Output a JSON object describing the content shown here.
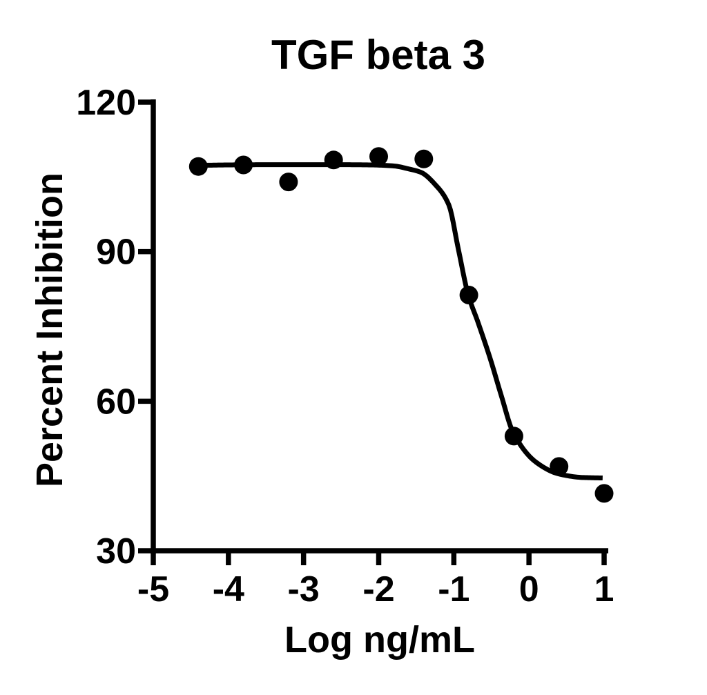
{
  "figure": {
    "background_color": "#ffffff",
    "foreground_color": "#000000"
  },
  "chart_data": {
    "type": "scatter",
    "subtype": "dose-response-inhibition-curve",
    "title": "TGF beta 3",
    "xlabel": "Log ng/mL",
    "ylabel": "Percent Inhibition",
    "x_range": [
      -5,
      1
    ],
    "y_range": [
      30,
      120
    ],
    "x_ticks": [
      -5,
      -4,
      -3,
      -2,
      -1,
      0,
      1
    ],
    "y_ticks": [
      30,
      60,
      90,
      120
    ],
    "grid": false,
    "legend": "none",
    "marker": "filled-circle",
    "marker_color": "#000000",
    "curve_color": "#000000",
    "series": [
      {
        "name": "TGF beta 3",
        "x": [
          -4.4,
          -3.8,
          -3.2,
          -2.6,
          -2.0,
          -1.4,
          -0.8,
          -0.2,
          0.4,
          1.0
        ],
        "y": [
          107.1,
          107.4,
          104.0,
          108.4,
          109.1,
          108.6,
          81.3,
          53.0,
          46.9,
          41.5
        ]
      }
    ],
    "fit_curve": {
      "model": "sigmoidal dose-response (4PL, descending)",
      "top_plateau": 107.5,
      "bottom_plateau": 44.6,
      "log_ic50_estimate": -0.68,
      "x_start": -4.45,
      "x_end": 0.98,
      "control_points": [
        [
          -4.45,
          107.3
        ],
        [
          -4.0,
          107.4
        ],
        [
          -3.5,
          107.45
        ],
        [
          -3.0,
          107.45
        ],
        [
          -2.5,
          107.45
        ],
        [
          -2.1,
          107.4
        ],
        [
          -1.8,
          107.2
        ],
        [
          -1.6,
          106.6
        ],
        [
          -1.435,
          105.9
        ],
        [
          -1.25,
          103.5
        ],
        [
          -1.067,
          99.4
        ],
        [
          -0.94,
          90.5
        ],
        [
          -0.81,
          81.4
        ],
        [
          -0.68,
          75.9
        ],
        [
          -0.515,
          68.5
        ],
        [
          -0.37,
          61.2
        ],
        [
          -0.21,
          53.7
        ],
        [
          0.1,
          47.7
        ],
        [
          0.4,
          45.4
        ],
        [
          0.71,
          44.7
        ],
        [
          0.98,
          44.6
        ]
      ]
    }
  }
}
